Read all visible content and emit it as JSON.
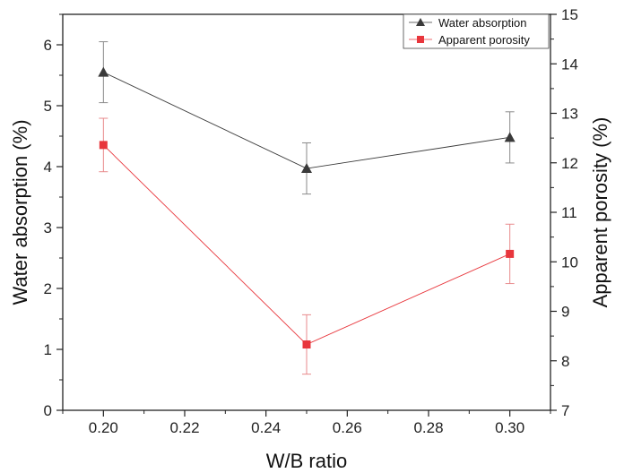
{
  "chart_data": {
    "type": "line",
    "xlabel": "W/B ratio",
    "x_ticks": [
      "0.20",
      "0.22",
      "0.24",
      "0.26",
      "0.28",
      "0.30"
    ],
    "xlim": [
      0.19,
      0.31
    ],
    "left_axis": {
      "label": "Water absorption (%)",
      "ylim": [
        0,
        6.5
      ],
      "ticks": [
        "0",
        "1",
        "2",
        "3",
        "4",
        "5",
        "6"
      ]
    },
    "right_axis": {
      "label": "Apparent porosity (%)",
      "ylim": [
        7,
        15
      ],
      "ticks": [
        "7",
        "8",
        "9",
        "10",
        "11",
        "12",
        "13",
        "14",
        "15"
      ]
    },
    "legend_position": "top-right",
    "series": [
      {
        "name": "Water absorption",
        "axis": "left",
        "color": "#3a3a3a",
        "marker": "triangle",
        "x": [
          0.2,
          0.25,
          0.3
        ],
        "y": [
          5.55,
          3.97,
          4.48
        ],
        "err": [
          0.5,
          0.42,
          0.42
        ]
      },
      {
        "name": "Apparent porosity",
        "axis": "right",
        "color": "#e8363c",
        "marker": "square",
        "x": [
          0.2,
          0.25,
          0.3
        ],
        "y": [
          12.36,
          8.33,
          10.16
        ],
        "err": [
          0.54,
          0.6,
          0.6
        ]
      }
    ]
  }
}
